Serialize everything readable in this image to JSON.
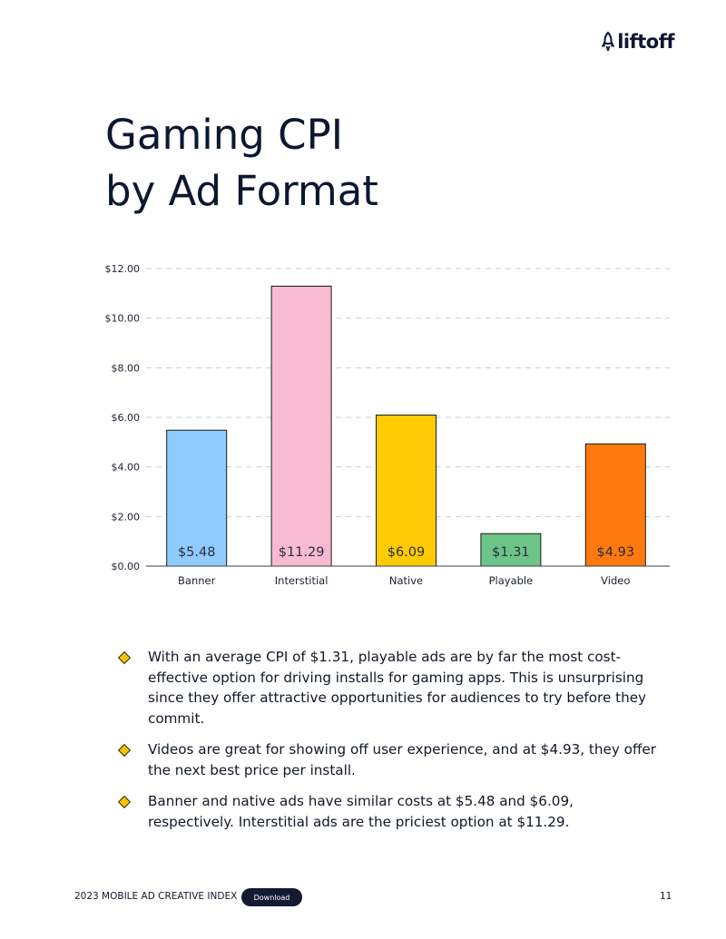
{
  "brand": {
    "name": "liftoff",
    "icon": "rocket-icon"
  },
  "title": {
    "line1": "Gaming CPI",
    "line2": "by Ad Format"
  },
  "chart_data": {
    "type": "bar",
    "title": "Gaming CPI by Ad Format",
    "xlabel": "",
    "ylabel": "",
    "categories": [
      "Banner",
      "Interstitial",
      "Native",
      "Playable",
      "Video"
    ],
    "values": [
      5.48,
      11.29,
      6.09,
      1.31,
      4.93
    ],
    "data_labels": [
      "$5.48",
      "$11.29",
      "$6.09",
      "$1.31",
      "$4.93"
    ],
    "colors": [
      "#90cbff",
      "#f8bad0",
      "#ffcb05",
      "#6cc487",
      "#ff7a0e"
    ],
    "ylim": [
      0,
      12
    ],
    "yticks": [
      0,
      2,
      4,
      6,
      8,
      10,
      12
    ],
    "ytick_labels": [
      "$0.00",
      "$2.00",
      "$4.00",
      "$6.00",
      "$8.00",
      "$10.00",
      "$12.00"
    ],
    "grid": true,
    "grid_style": "dashed",
    "legend": "none"
  },
  "bullets": [
    "With an average CPI of $1.31, playable ads are by far the most cost-effective option for driving installs for gaming apps. This is unsurprising since they offer attractive opportunities for audiences to try before they commit.",
    "Videos are great for showing off user experience, and at $4.93, they offer the next best price per install.",
    "Banner and native ads have similar costs at $5.48 and $6.09, respectively. Interstitial ads are the priciest option at $11.29."
  ],
  "footer": {
    "report_name": "2023 MOBILE AD CREATIVE INDEX",
    "download_label": "Download",
    "page_number": "11"
  }
}
